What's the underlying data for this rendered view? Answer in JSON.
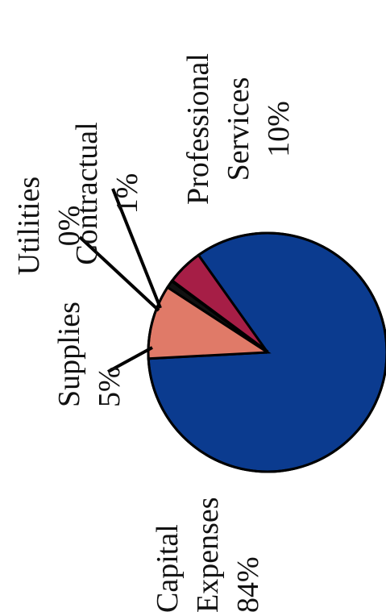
{
  "chart_data": {
    "type": "pie",
    "title": "",
    "slices": [
      {
        "label_lines": [
          "Capital",
          "Expenses",
          "84%"
        ],
        "value": 84,
        "color": "#0b3b8f"
      },
      {
        "label_lines": [
          "Supplies",
          "5%"
        ],
        "value": 5,
        "color": "#a61e46"
      },
      {
        "label_lines": [
          "Utilities",
          "0%"
        ],
        "value": 0,
        "color": "#000000"
      },
      {
        "label_lines": [
          "Contractual",
          "1%"
        ],
        "value": 1,
        "color": "#111111"
      },
      {
        "label_lines": [
          "Professional",
          "Services",
          "10%"
        ],
        "value": 10,
        "color": "#e07a68"
      }
    ],
    "legend": "none",
    "orientation": "rotated-90-ccw"
  }
}
